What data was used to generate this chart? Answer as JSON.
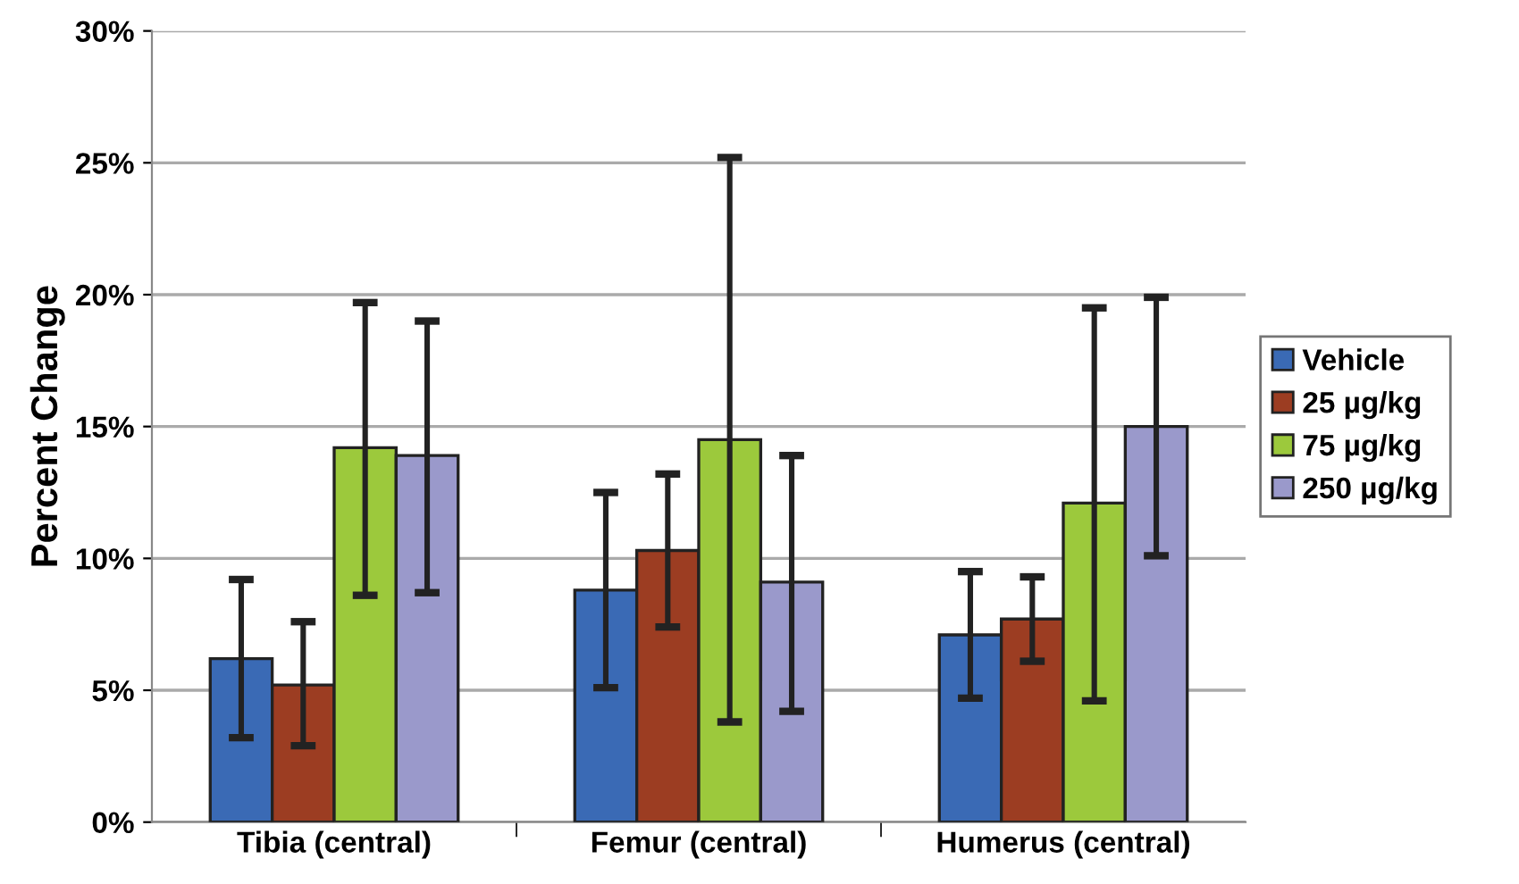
{
  "chart_data": {
    "type": "bar",
    "ylabel": "Percent Change",
    "categories": [
      "Tibia (central)",
      "Femur (central)",
      "Humerus (central)"
    ],
    "series": [
      {
        "name": "Vehicle",
        "color": "#3a6ab5",
        "values": [
          6.2,
          8.8,
          7.1
        ],
        "errors": [
          [
            3.2,
            9.2
          ],
          [
            5.1,
            12.5
          ],
          [
            4.7,
            9.5
          ]
        ]
      },
      {
        "name": "25 µg/kg",
        "color": "#9c3d22",
        "values": [
          5.2,
          10.3,
          7.7
        ],
        "errors": [
          [
            2.9,
            7.6
          ],
          [
            7.4,
            13.2
          ],
          [
            6.1,
            9.3
          ]
        ]
      },
      {
        "name": "75 µg/kg",
        "color": "#9cc93c",
        "values": [
          14.2,
          14.5,
          12.1
        ],
        "errors": [
          [
            8.6,
            19.7
          ],
          [
            3.8,
            25.2
          ],
          [
            4.6,
            19.5
          ]
        ]
      },
      {
        "name": "250 µg/kg",
        "color": "#9a99cb",
        "values": [
          13.9,
          9.1,
          15.0
        ],
        "errors": [
          [
            8.7,
            19.0
          ],
          [
            4.2,
            13.9
          ],
          [
            10.1,
            19.9
          ]
        ]
      }
    ],
    "ylim": [
      0,
      30
    ],
    "yticks": [
      {
        "value": 0,
        "label": "0%"
      },
      {
        "value": 5,
        "label": "5%"
      },
      {
        "value": 10,
        "label": "10%"
      },
      {
        "value": 15,
        "label": "15%"
      },
      {
        "value": 20,
        "label": "20%"
      },
      {
        "value": 25,
        "label": "25%"
      },
      {
        "value": 30,
        "label": "30%"
      }
    ],
    "grid": "y",
    "legend": "right"
  }
}
